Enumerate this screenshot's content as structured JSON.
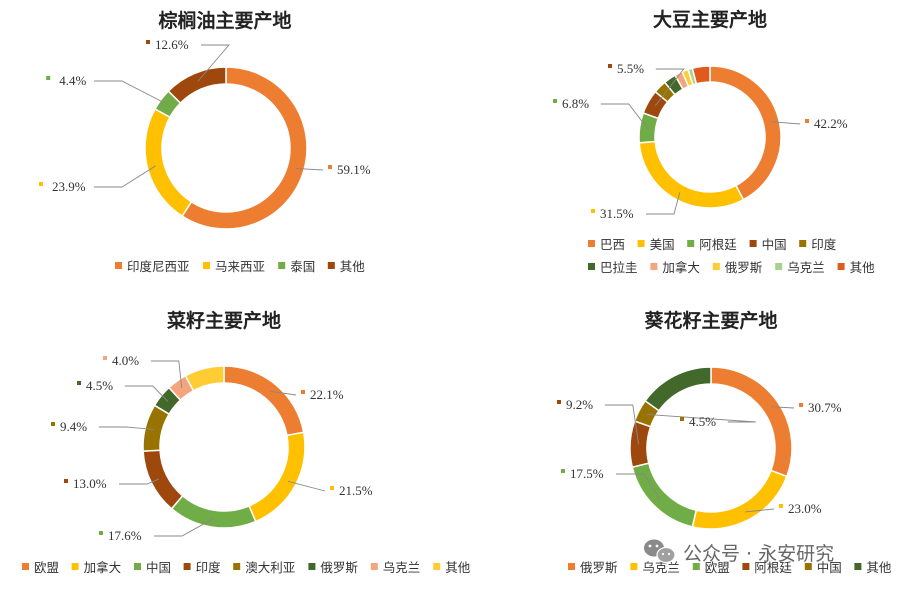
{
  "colors": {
    "orange": "#ED7D31",
    "yellow": "#FFC000",
    "green": "#70AD47",
    "brown": "#9E480E",
    "olive": "#997300",
    "darkgreen": "#43682B",
    "salmon": "#F4A57D",
    "gold": "#FFCD33",
    "lightgreen": "#A9D18E",
    "red": "#E05A1E"
  },
  "watermark": {
    "text": "公众号 · 永安研究",
    "icon": "wechat-icon"
  },
  "chart_data": [
    {
      "type": "pie",
      "title": "棕榈油主要产地",
      "legend_position": "bottom",
      "categories": [
        "印度尼西亚",
        "马来西亚",
        "泰国",
        "其他"
      ],
      "values": [
        59.1,
        23.9,
        4.4,
        12.6
      ],
      "labels": [
        "59.1%",
        "23.9%",
        "4.4%",
        "12.6%"
      ],
      "colors": [
        "#ED7D31",
        "#FFC000",
        "#70AD47",
        "#9E480E"
      ]
    },
    {
      "type": "pie",
      "title": "大豆主要产地",
      "legend_position": "bottom",
      "categories": [
        "巴西",
        "美国",
        "阿根廷",
        "中国",
        "印度",
        "巴拉圭",
        "加拿大",
        "俄罗斯",
        "乌克兰",
        "其他"
      ],
      "values": [
        42.2,
        31.5,
        6.8,
        5.5,
        3.0,
        2.8,
        1.8,
        1.4,
        1.0,
        4.0
      ],
      "labels": [
        "42.2%",
        "31.5%",
        "6.8%",
        "5.5%",
        "",
        "",
        "",
        "",
        "",
        ""
      ],
      "colors": [
        "#ED7D31",
        "#FFC000",
        "#70AD47",
        "#9E480E",
        "#997300",
        "#43682B",
        "#F4A57D",
        "#FFCD33",
        "#A9D18E",
        "#E05A1E"
      ]
    },
    {
      "type": "pie",
      "title": "菜籽主要产地",
      "legend_position": "bottom",
      "categories": [
        "欧盟",
        "加拿大",
        "中国",
        "印度",
        "澳大利亚",
        "俄罗斯",
        "乌克兰",
        "其他"
      ],
      "values": [
        22.1,
        21.5,
        17.6,
        13.0,
        9.4,
        4.5,
        4.0,
        7.9
      ],
      "labels": [
        "22.1%",
        "21.5%",
        "17.6%",
        "13.0%",
        "9.4%",
        "4.5%",
        "4.0%",
        ""
      ],
      "colors": [
        "#ED7D31",
        "#FFC000",
        "#70AD47",
        "#9E480E",
        "#997300",
        "#43682B",
        "#F4A57D",
        "#FFCD33"
      ]
    },
    {
      "type": "pie",
      "title": "葵花籽主要产地",
      "legend_position": "bottom",
      "categories": [
        "俄罗斯",
        "乌克兰",
        "欧盟",
        "阿根廷",
        "中国",
        "其他"
      ],
      "values": [
        30.7,
        23.0,
        17.5,
        9.2,
        4.5,
        15.1
      ],
      "labels": [
        "30.7%",
        "23.0%",
        "17.5%",
        "9.2%",
        "4.5%",
        ""
      ],
      "colors": [
        "#ED7D31",
        "#FFC000",
        "#70AD47",
        "#9E480E",
        "#997300",
        "#43682B"
      ]
    }
  ]
}
